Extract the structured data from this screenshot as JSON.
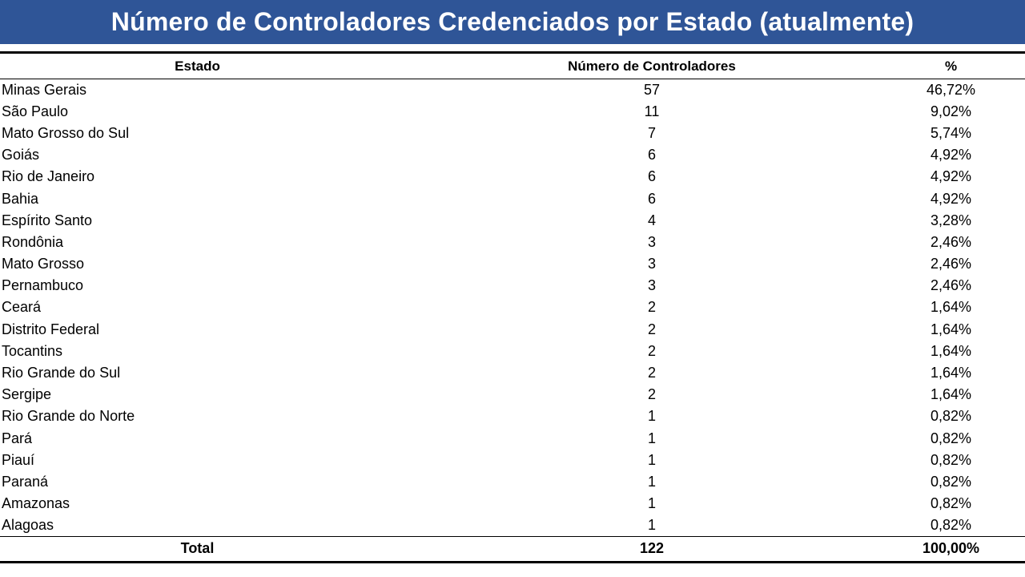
{
  "title": "Número de Controladores Credenciados por Estado (atualmente)",
  "colors": {
    "title_bar": "#2f5597",
    "title_text": "#ffffff"
  },
  "table": {
    "headers": {
      "state": "Estado",
      "count": "Número de Controladores",
      "percent": "%"
    },
    "rows": [
      {
        "state": "Minas Gerais",
        "count": "57",
        "percent": "46,72%"
      },
      {
        "state": "São Paulo",
        "count": "11",
        "percent": "9,02%"
      },
      {
        "state": "Mato Grosso do Sul",
        "count": "7",
        "percent": "5,74%"
      },
      {
        "state": "Goiás",
        "count": "6",
        "percent": "4,92%"
      },
      {
        "state": "Rio de Janeiro",
        "count": "6",
        "percent": "4,92%"
      },
      {
        "state": "Bahia",
        "count": "6",
        "percent": "4,92%"
      },
      {
        "state": "Espírito Santo",
        "count": "4",
        "percent": "3,28%"
      },
      {
        "state": "Rondônia",
        "count": "3",
        "percent": "2,46%"
      },
      {
        "state": "Mato Grosso",
        "count": "3",
        "percent": "2,46%"
      },
      {
        "state": "Pernambuco",
        "count": "3",
        "percent": "2,46%"
      },
      {
        "state": "Ceará",
        "count": "2",
        "percent": "1,64%"
      },
      {
        "state": "Distrito Federal",
        "count": "2",
        "percent": "1,64%"
      },
      {
        "state": "Tocantins",
        "count": "2",
        "percent": "1,64%"
      },
      {
        "state": "Rio Grande do Sul",
        "count": "2",
        "percent": "1,64%"
      },
      {
        "state": "Sergipe",
        "count": "2",
        "percent": "1,64%"
      },
      {
        "state": "Rio Grande do Norte",
        "count": "1",
        "percent": "0,82%"
      },
      {
        "state": "Pará",
        "count": "1",
        "percent": "0,82%"
      },
      {
        "state": "Piauí",
        "count": "1",
        "percent": "0,82%"
      },
      {
        "state": "Paraná",
        "count": "1",
        "percent": "0,82%"
      },
      {
        "state": "Amazonas",
        "count": "1",
        "percent": "0,82%"
      },
      {
        "state": "Alagoas",
        "count": "1",
        "percent": "0,82%"
      }
    ],
    "total": {
      "label": "Total",
      "count": "122",
      "percent": "100,00%"
    }
  }
}
